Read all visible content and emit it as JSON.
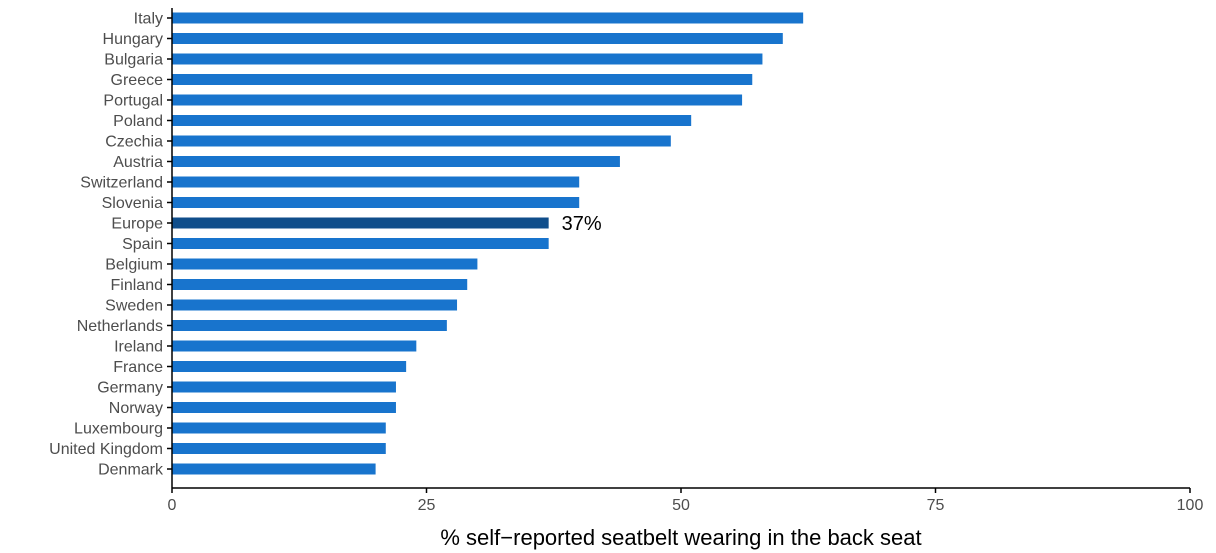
{
  "chart_data": {
    "type": "bar",
    "orientation": "horizontal",
    "categories": [
      "Italy",
      "Hungary",
      "Bulgaria",
      "Greece",
      "Portugal",
      "Poland",
      "Czechia",
      "Austria",
      "Switzerland",
      "Slovenia",
      "Europe",
      "Spain",
      "Belgium",
      "Finland",
      "Sweden",
      "Netherlands",
      "Ireland",
      "France",
      "Germany",
      "Norway",
      "Luxembourg",
      "United Kingdom",
      "Denmark"
    ],
    "values": [
      62,
      60,
      58,
      57,
      56,
      51,
      49,
      44,
      40,
      40,
      37,
      37,
      30,
      29,
      28,
      27,
      24,
      23,
      22,
      22,
      21,
      21,
      20
    ],
    "highlight": {
      "category": "Europe",
      "label": "37%"
    },
    "xlabel": "% self−reported seatbelt wearing in the back seat",
    "ylabel": "",
    "title": "",
    "xlim": [
      0,
      100
    ],
    "xticks": [
      0,
      25,
      50,
      75,
      100
    ],
    "xtick_labels": [
      "0",
      "25",
      "50",
      "75",
      "100"
    ],
    "grid": false,
    "legend": false,
    "colors": {
      "bar": "#1874CD",
      "highlight_bar": "#104E8B",
      "axis": "#000000",
      "tick_text": "#4d4d4d"
    }
  }
}
